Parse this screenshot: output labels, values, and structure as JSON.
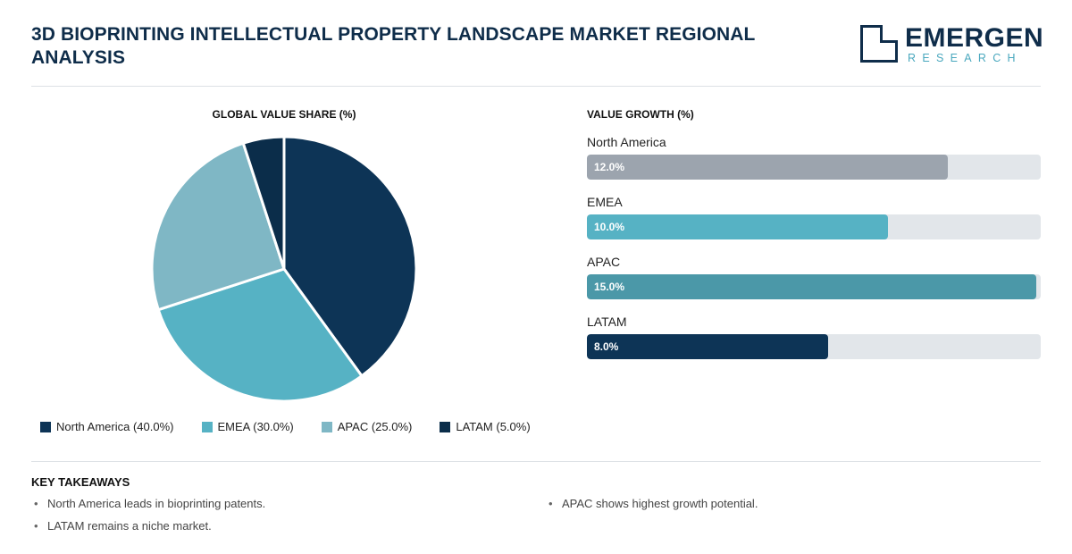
{
  "header": {
    "title": "3D BIOPRINTING INTELLECTUAL PROPERTY LANDSCAPE MARKET REGIONAL ANALYSIS",
    "logo_word": "EMERGEN",
    "logo_sub": "RESEARCH"
  },
  "colors": {
    "north_america": "#0d3456",
    "emea": "#56b2c4",
    "apac": "#7fb7c5",
    "latam": "#0b2d4a",
    "bar_north_america": "#9ca4ae",
    "bar_emea": "#56b2c4",
    "bar_apac": "#4b98a8",
    "bar_latam": "#0d3456"
  },
  "chart_data": [
    {
      "type": "pie",
      "title": "GLOBAL VALUE SHARE (%)",
      "categories": [
        "North America",
        "EMEA",
        "APAC",
        "LATAM"
      ],
      "values": [
        40.0,
        30.0,
        25.0,
        5.0
      ],
      "legend": [
        "North America (40.0%)",
        "EMEA (30.0%)",
        "APAC (25.0%)",
        "LATAM (5.0%)"
      ],
      "legend_position": "bottom"
    },
    {
      "type": "bar",
      "orientation": "horizontal",
      "title": "VALUE GROWTH (%)",
      "categories": [
        "North America",
        "EMEA",
        "APAC",
        "LATAM"
      ],
      "values": [
        12.0,
        10.0,
        15.0,
        8.0
      ],
      "value_labels": [
        "12.0%",
        "10.0%",
        "15.0%",
        "8.0%"
      ],
      "xlim": [
        0,
        15
      ]
    }
  ],
  "takeaways": {
    "title": "KEY TAKEAWAYS",
    "items": [
      "North America leads in bioprinting patents.",
      "APAC shows highest growth potential.",
      "LATAM remains a niche market."
    ]
  }
}
